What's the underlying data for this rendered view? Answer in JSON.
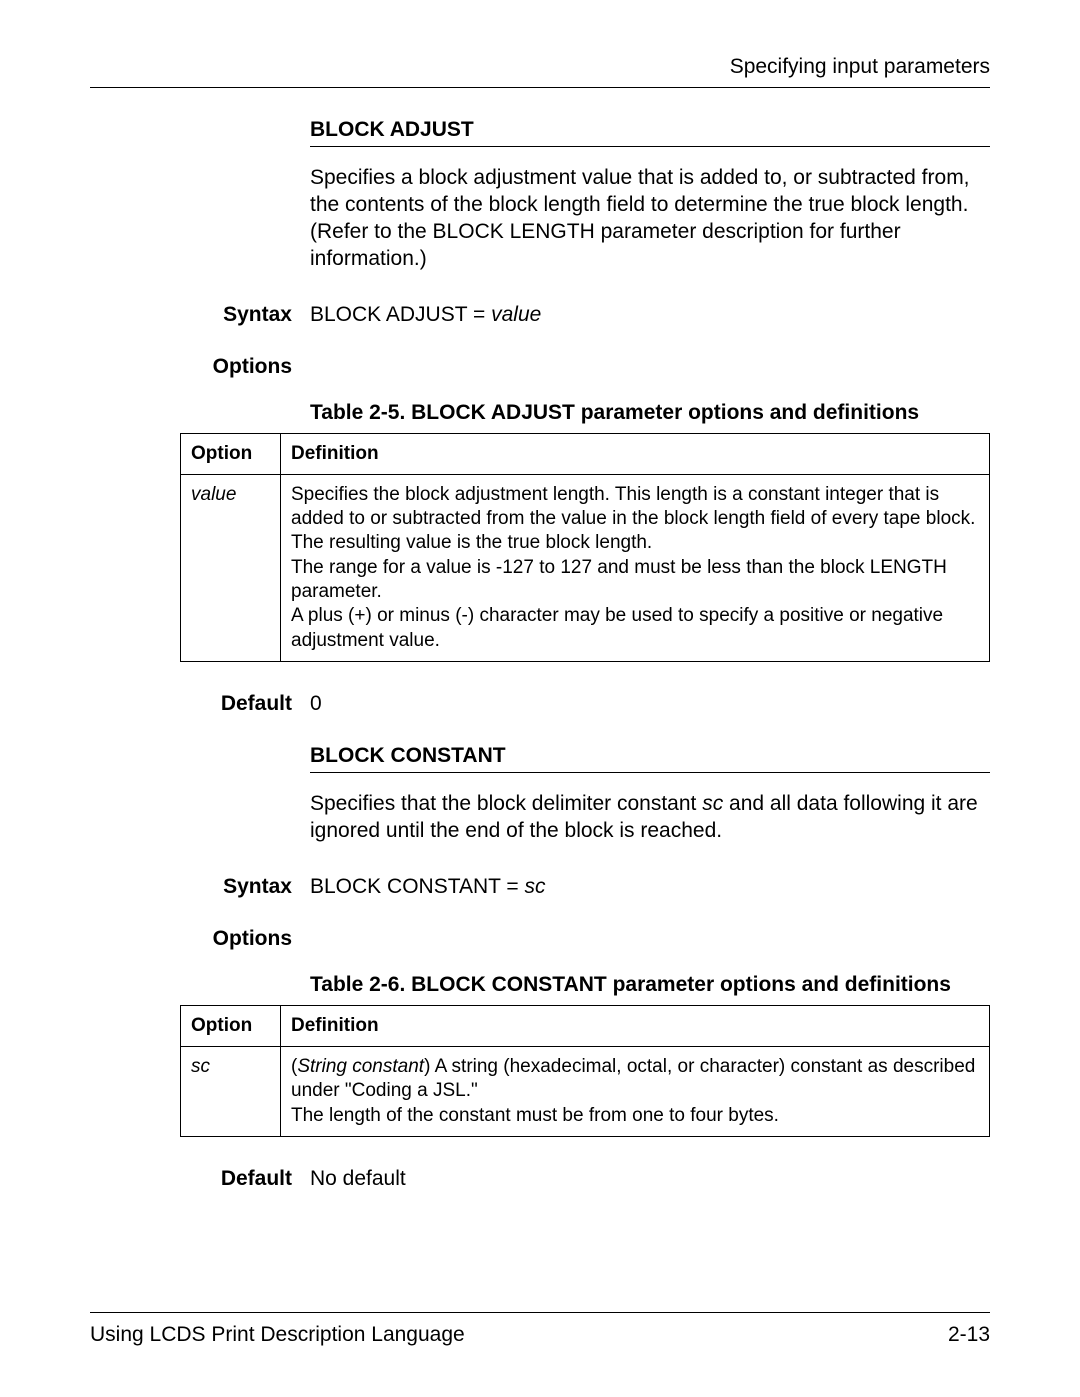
{
  "header": {
    "running": "Specifying input parameters"
  },
  "footer": {
    "left": "Using LCDS Print Description Language",
    "right": "2-13"
  },
  "labels": {
    "syntax": "Syntax",
    "options": "Options",
    "default": "Default",
    "option_col": "Option",
    "definition_col": "Definition"
  },
  "blockAdjust": {
    "heading": "BLOCK ADJUST",
    "description": "Specifies a block adjustment value that is added to, or subtracted from, the contents of the block length field to determine the true block length. (Refer to the BLOCK LENGTH parameter description for further information.)",
    "syntax_prefix": "BLOCK ADJUST = ",
    "syntax_var": "value",
    "table_caption": "Table 2-5. BLOCK ADJUST parameter options and definitions",
    "option_name": "value",
    "definition_p1": "Specifies the block adjustment length. This length is a constant integer that is added to or subtracted from the value in the block length field of every tape block. The resulting value is the true block length.",
    "definition_p2": "The range for a value is -127 to 127 and must be less than the block LENGTH parameter.",
    "definition_p3": "A plus (+) or minus (-) character may be used to specify a positive or negative adjustment value.",
    "default": "0"
  },
  "blockConstant": {
    "heading": "BLOCK CONSTANT",
    "desc_pre": "Specifies that the block delimiter constant ",
    "desc_var": "sc",
    "desc_post": " and all data following it are ignored until the end of the block is reached.",
    "syntax_prefix": "BLOCK CONSTANT = ",
    "syntax_var": "sc",
    "table_caption": "Table 2-6. BLOCK CONSTANT parameter options and definitions",
    "option_name": "sc",
    "def_lead_italic": "String constant",
    "def_p1_rest": ") A string (hexadecimal, octal, or character) constant as described under \"Coding a JSL.\"",
    "def_p2": "The length of the constant must be from one to four bytes.",
    "default": "No default"
  }
}
